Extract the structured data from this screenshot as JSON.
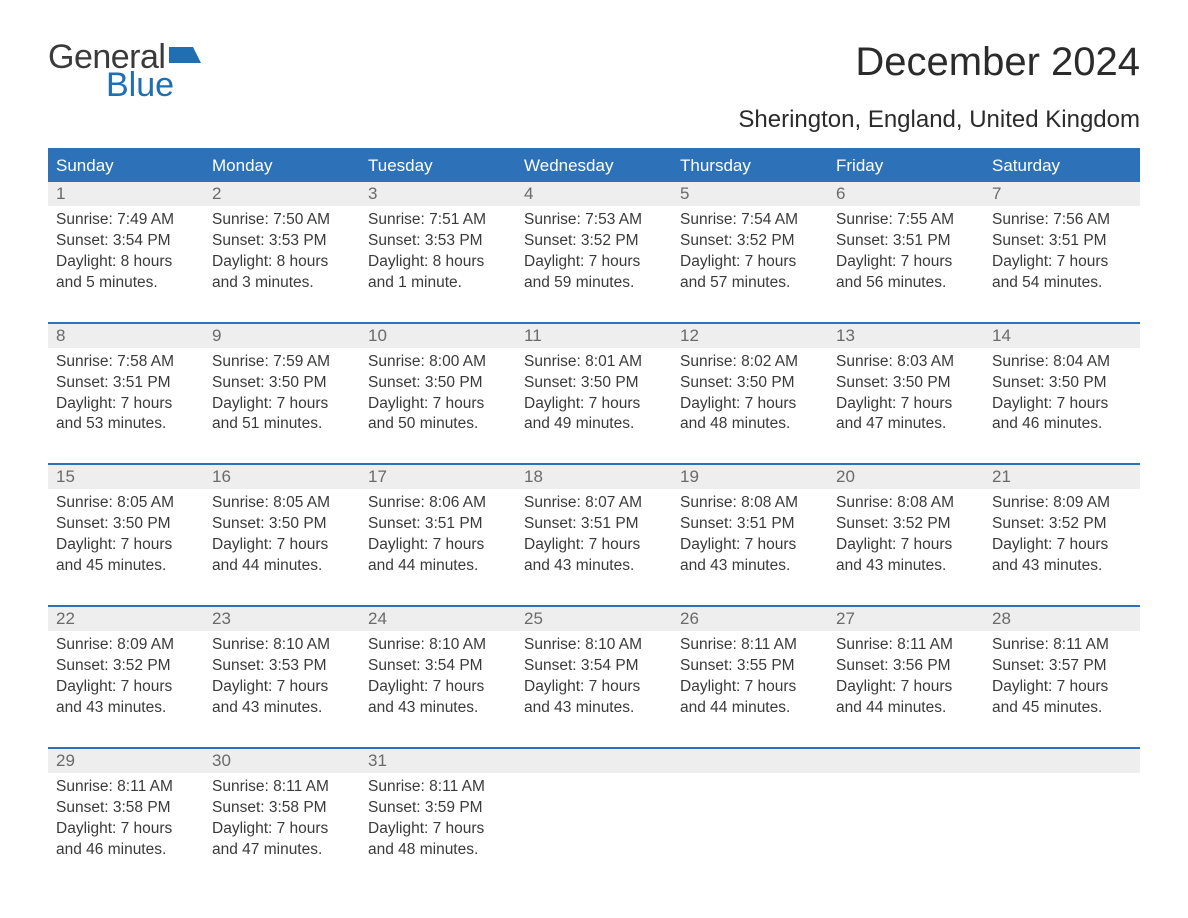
{
  "logo": {
    "general": "General",
    "blue": "Blue"
  },
  "title": "December 2024",
  "subtitle": "Sherington, England, United Kingdom",
  "colors": {
    "header_bg": "#2d72b8",
    "header_text": "#ffffff",
    "daynum_bg": "#eeeeee",
    "daynum_text": "#6a6a6a",
    "body_text": "#3a3a3a",
    "logo_blue": "#1f6fb2"
  },
  "days_of_week": [
    "Sunday",
    "Monday",
    "Tuesday",
    "Wednesday",
    "Thursday",
    "Friday",
    "Saturday"
  ],
  "weeks": [
    [
      {
        "n": "1",
        "sunrise": "Sunrise: 7:49 AM",
        "sunset": "Sunset: 3:54 PM",
        "d1": "Daylight: 8 hours",
        "d2": "and 5 minutes."
      },
      {
        "n": "2",
        "sunrise": "Sunrise: 7:50 AM",
        "sunset": "Sunset: 3:53 PM",
        "d1": "Daylight: 8 hours",
        "d2": "and 3 minutes."
      },
      {
        "n": "3",
        "sunrise": "Sunrise: 7:51 AM",
        "sunset": "Sunset: 3:53 PM",
        "d1": "Daylight: 8 hours",
        "d2": "and 1 minute."
      },
      {
        "n": "4",
        "sunrise": "Sunrise: 7:53 AM",
        "sunset": "Sunset: 3:52 PM",
        "d1": "Daylight: 7 hours",
        "d2": "and 59 minutes."
      },
      {
        "n": "5",
        "sunrise": "Sunrise: 7:54 AM",
        "sunset": "Sunset: 3:52 PM",
        "d1": "Daylight: 7 hours",
        "d2": "and 57 minutes."
      },
      {
        "n": "6",
        "sunrise": "Sunrise: 7:55 AM",
        "sunset": "Sunset: 3:51 PM",
        "d1": "Daylight: 7 hours",
        "d2": "and 56 minutes."
      },
      {
        "n": "7",
        "sunrise": "Sunrise: 7:56 AM",
        "sunset": "Sunset: 3:51 PM",
        "d1": "Daylight: 7 hours",
        "d2": "and 54 minutes."
      }
    ],
    [
      {
        "n": "8",
        "sunrise": "Sunrise: 7:58 AM",
        "sunset": "Sunset: 3:51 PM",
        "d1": "Daylight: 7 hours",
        "d2": "and 53 minutes."
      },
      {
        "n": "9",
        "sunrise": "Sunrise: 7:59 AM",
        "sunset": "Sunset: 3:50 PM",
        "d1": "Daylight: 7 hours",
        "d2": "and 51 minutes."
      },
      {
        "n": "10",
        "sunrise": "Sunrise: 8:00 AM",
        "sunset": "Sunset: 3:50 PM",
        "d1": "Daylight: 7 hours",
        "d2": "and 50 minutes."
      },
      {
        "n": "11",
        "sunrise": "Sunrise: 8:01 AM",
        "sunset": "Sunset: 3:50 PM",
        "d1": "Daylight: 7 hours",
        "d2": "and 49 minutes."
      },
      {
        "n": "12",
        "sunrise": "Sunrise: 8:02 AM",
        "sunset": "Sunset: 3:50 PM",
        "d1": "Daylight: 7 hours",
        "d2": "and 48 minutes."
      },
      {
        "n": "13",
        "sunrise": "Sunrise: 8:03 AM",
        "sunset": "Sunset: 3:50 PM",
        "d1": "Daylight: 7 hours",
        "d2": "and 47 minutes."
      },
      {
        "n": "14",
        "sunrise": "Sunrise: 8:04 AM",
        "sunset": "Sunset: 3:50 PM",
        "d1": "Daylight: 7 hours",
        "d2": "and 46 minutes."
      }
    ],
    [
      {
        "n": "15",
        "sunrise": "Sunrise: 8:05 AM",
        "sunset": "Sunset: 3:50 PM",
        "d1": "Daylight: 7 hours",
        "d2": "and 45 minutes."
      },
      {
        "n": "16",
        "sunrise": "Sunrise: 8:05 AM",
        "sunset": "Sunset: 3:50 PM",
        "d1": "Daylight: 7 hours",
        "d2": "and 44 minutes."
      },
      {
        "n": "17",
        "sunrise": "Sunrise: 8:06 AM",
        "sunset": "Sunset: 3:51 PM",
        "d1": "Daylight: 7 hours",
        "d2": "and 44 minutes."
      },
      {
        "n": "18",
        "sunrise": "Sunrise: 8:07 AM",
        "sunset": "Sunset: 3:51 PM",
        "d1": "Daylight: 7 hours",
        "d2": "and 43 minutes."
      },
      {
        "n": "19",
        "sunrise": "Sunrise: 8:08 AM",
        "sunset": "Sunset: 3:51 PM",
        "d1": "Daylight: 7 hours",
        "d2": "and 43 minutes."
      },
      {
        "n": "20",
        "sunrise": "Sunrise: 8:08 AM",
        "sunset": "Sunset: 3:52 PM",
        "d1": "Daylight: 7 hours",
        "d2": "and 43 minutes."
      },
      {
        "n": "21",
        "sunrise": "Sunrise: 8:09 AM",
        "sunset": "Sunset: 3:52 PM",
        "d1": "Daylight: 7 hours",
        "d2": "and 43 minutes."
      }
    ],
    [
      {
        "n": "22",
        "sunrise": "Sunrise: 8:09 AM",
        "sunset": "Sunset: 3:52 PM",
        "d1": "Daylight: 7 hours",
        "d2": "and 43 minutes."
      },
      {
        "n": "23",
        "sunrise": "Sunrise: 8:10 AM",
        "sunset": "Sunset: 3:53 PM",
        "d1": "Daylight: 7 hours",
        "d2": "and 43 minutes."
      },
      {
        "n": "24",
        "sunrise": "Sunrise: 8:10 AM",
        "sunset": "Sunset: 3:54 PM",
        "d1": "Daylight: 7 hours",
        "d2": "and 43 minutes."
      },
      {
        "n": "25",
        "sunrise": "Sunrise: 8:10 AM",
        "sunset": "Sunset: 3:54 PM",
        "d1": "Daylight: 7 hours",
        "d2": "and 43 minutes."
      },
      {
        "n": "26",
        "sunrise": "Sunrise: 8:11 AM",
        "sunset": "Sunset: 3:55 PM",
        "d1": "Daylight: 7 hours",
        "d2": "and 44 minutes."
      },
      {
        "n": "27",
        "sunrise": "Sunrise: 8:11 AM",
        "sunset": "Sunset: 3:56 PM",
        "d1": "Daylight: 7 hours",
        "d2": "and 44 minutes."
      },
      {
        "n": "28",
        "sunrise": "Sunrise: 8:11 AM",
        "sunset": "Sunset: 3:57 PM",
        "d1": "Daylight: 7 hours",
        "d2": "and 45 minutes."
      }
    ],
    [
      {
        "n": "29",
        "sunrise": "Sunrise: 8:11 AM",
        "sunset": "Sunset: 3:58 PM",
        "d1": "Daylight: 7 hours",
        "d2": "and 46 minutes."
      },
      {
        "n": "30",
        "sunrise": "Sunrise: 8:11 AM",
        "sunset": "Sunset: 3:58 PM",
        "d1": "Daylight: 7 hours",
        "d2": "and 47 minutes."
      },
      {
        "n": "31",
        "sunrise": "Sunrise: 8:11 AM",
        "sunset": "Sunset: 3:59 PM",
        "d1": "Daylight: 7 hours",
        "d2": "and 48 minutes."
      },
      null,
      null,
      null,
      null
    ]
  ]
}
